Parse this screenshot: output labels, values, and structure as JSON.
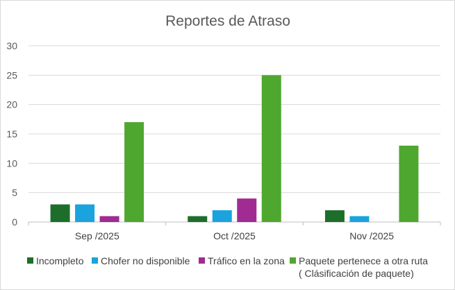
{
  "chart_data": {
    "type": "bar",
    "title": "Reportes de Atraso",
    "categories": [
      "Sep /2025",
      "Oct /2025",
      "Nov /2025"
    ],
    "series": [
      {
        "name": "Incompleto",
        "color": "#1e6e2b",
        "values": [
          3,
          1,
          2
        ]
      },
      {
        "name": "Chofer no disponible",
        "color": "#1aa3dd",
        "values": [
          3,
          2,
          1
        ]
      },
      {
        "name": "Tráfico en la zona",
        "color": "#a02b93",
        "values": [
          1,
          4,
          0
        ]
      },
      {
        "name": "Paquete pertenece a otra ruta",
        "name_line2": "( Clásificación de paquete)",
        "color": "#4ea72e",
        "values": [
          17,
          25,
          13
        ]
      }
    ],
    "ylim": [
      0,
      30
    ],
    "yticks": [
      0,
      5,
      10,
      15,
      20,
      25,
      30
    ],
    "grid": true,
    "legend": "bottom"
  }
}
